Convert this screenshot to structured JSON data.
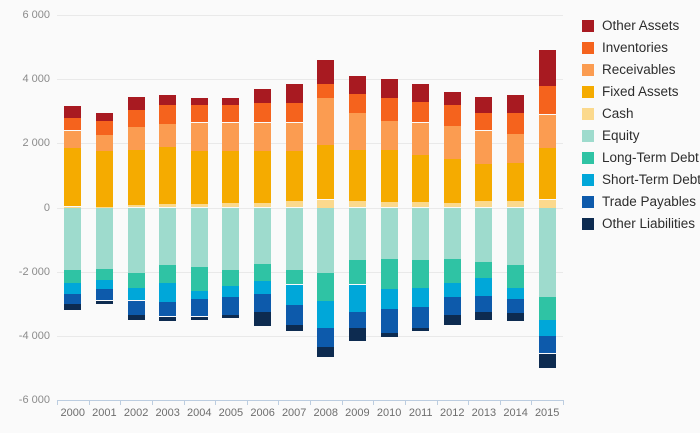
{
  "chart_data": {
    "type": "bar",
    "stacked": true,
    "title": "",
    "xlabel": "",
    "ylabel": "",
    "grid": true,
    "legend_position": "top-right",
    "background_color": "#fafafa",
    "gridline_color": "#e9e9e9",
    "axis_color": "#bccde0",
    "ylim": [
      -6000,
      6000
    ],
    "ytick_interval": 2000,
    "ytick_labels": [
      "6 000",
      "4 000",
      "2 000",
      "0",
      "-2 000",
      "-4 000",
      "-6 000"
    ],
    "categories": [
      "2000",
      "2001",
      "2002",
      "2003",
      "2004",
      "2005",
      "2006",
      "2007",
      "2008",
      "2009",
      "2010",
      "2011",
      "2012",
      "2013",
      "2014",
      "2015"
    ],
    "series": [
      {
        "name": "Other Assets",
        "color": "#a81a21",
        "values": [
          350,
          250,
          400,
          300,
          200,
          200,
          450,
          600,
          750,
          550,
          600,
          550,
          400,
          500,
          550,
          1100
        ]
      },
      {
        "name": "Inventories",
        "color": "#f5631d",
        "values": [
          400,
          450,
          550,
          600,
          550,
          550,
          600,
          600,
          450,
          600,
          700,
          650,
          650,
          550,
          650,
          900
        ]
      },
      {
        "name": "Receivables",
        "color": "#fb9c51",
        "values": [
          550,
          500,
          700,
          700,
          900,
          900,
          900,
          900,
          1450,
          1150,
          900,
          1000,
          1050,
          1050,
          900,
          1050
        ]
      },
      {
        "name": "Fixed Assets",
        "color": "#f5ab00",
        "values": [
          1820,
          1720,
          1720,
          1780,
          1650,
          1620,
          1620,
          1550,
          1700,
          1600,
          1620,
          1470,
          1350,
          1150,
          1200,
          1600
        ]
      },
      {
        "name": "Cash",
        "color": "#fbd98d",
        "values": [
          30,
          30,
          80,
          120,
          100,
          130,
          130,
          200,
          250,
          200,
          180,
          180,
          150,
          200,
          200,
          250
        ]
      },
      {
        "name": "Equity",
        "color": "#9edbcd",
        "values": [
          -1950,
          -1900,
          -2050,
          -1800,
          -1850,
          -1950,
          -1750,
          -1950,
          -2050,
          -1650,
          -1600,
          -1650,
          -1600,
          -1700,
          -1800,
          -2800
        ]
      },
      {
        "name": "Long-Term Debt",
        "color": "#2fc3a4",
        "values": [
          -400,
          -350,
          -450,
          -550,
          -750,
          -500,
          -550,
          -450,
          -850,
          -750,
          -950,
          -850,
          -750,
          -500,
          -700,
          -700
        ]
      },
      {
        "name": "Short-Term Debt",
        "color": "#00a7d9",
        "values": [
          -350,
          -300,
          -400,
          -600,
          -250,
          -350,
          -400,
          -650,
          -850,
          -850,
          -600,
          -600,
          -450,
          -550,
          -350,
          -500
        ]
      },
      {
        "name": "Trade Payables",
        "color": "#0d5aab",
        "values": [
          -300,
          -350,
          -450,
          -450,
          -550,
          -550,
          -550,
          -600,
          -600,
          -500,
          -750,
          -650,
          -550,
          -500,
          -450,
          -550
        ]
      },
      {
        "name": "Other Liabilities",
        "color": "#0d2b50",
        "values": [
          -200,
          -100,
          -150,
          -150,
          -100,
          -100,
          -450,
          -200,
          -300,
          -400,
          -150,
          -100,
          -300,
          -250,
          -250,
          -450
        ]
      }
    ]
  }
}
